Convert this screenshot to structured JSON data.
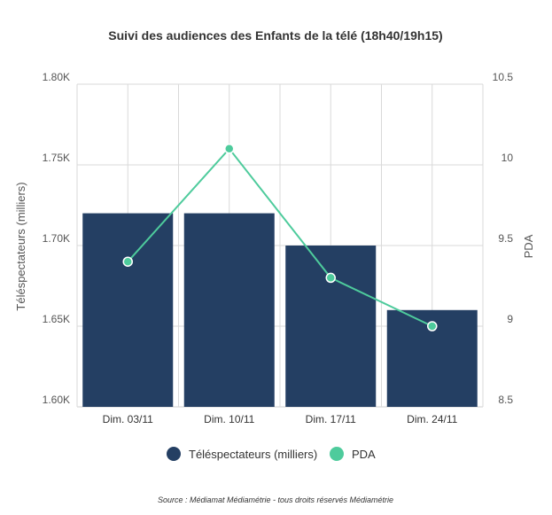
{
  "chart_data": {
    "type": "bar",
    "title": "Suivi des audiences des Enfants de la télé (18h40/19h15)",
    "categories": [
      "Dim. 03/11",
      "Dim. 10/11",
      "Dim. 17/11",
      "Dim. 24/11"
    ],
    "series": [
      {
        "name": "Téléspectateurs (milliers)",
        "type": "bar",
        "axis": "left",
        "color": "#243f63",
        "values": [
          1720,
          1720,
          1700,
          1660
        ]
      },
      {
        "name": "PDA",
        "type": "line",
        "axis": "right",
        "color": "#4ecb9c",
        "values": [
          9.4,
          10.1,
          9.3,
          9.0
        ]
      }
    ],
    "ylabel": "Téléspectateurs (milliers)",
    "ylabel_right": "PDA",
    "ylim": [
      1600,
      1800
    ],
    "ylim_right": [
      8.5,
      10.5
    ],
    "yticks": [
      "1.60K",
      "1.65K",
      "1.70K",
      "1.75K",
      "1.80K"
    ],
    "yticks_right": [
      "8.5",
      "9",
      "9.5",
      "10",
      "10.5"
    ],
    "grid": true,
    "legend_position": "bottom-center",
    "source": "Source : Médiamat Médiamétrie - tous droits réservés Médiamétrie"
  }
}
